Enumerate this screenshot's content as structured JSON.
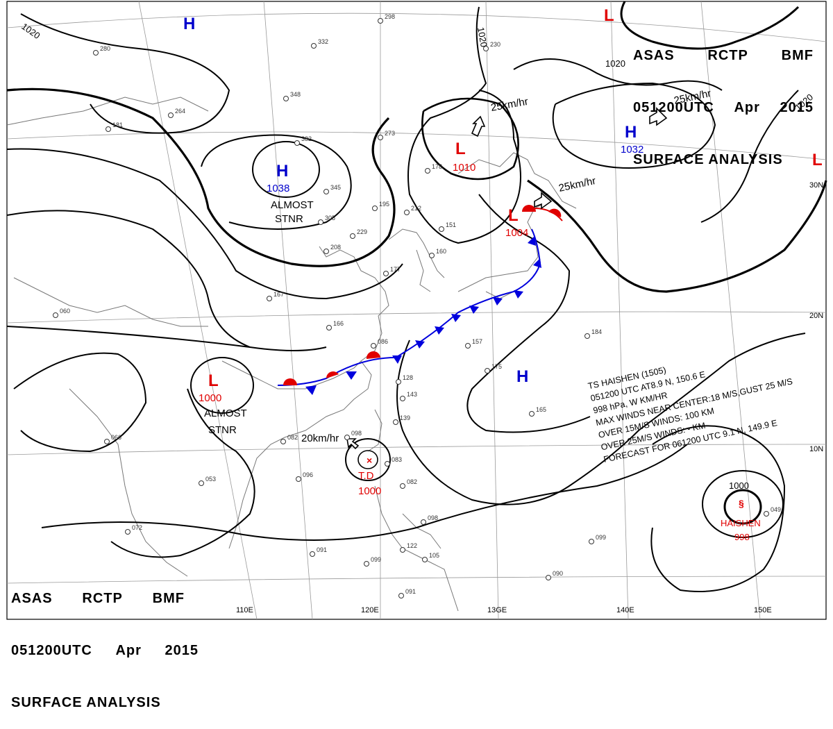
{
  "header": {
    "agency": "ASAS",
    "station": "RCTP",
    "office": "BMF",
    "datetime": "051200UTC",
    "month": "Apr",
    "year": "2015",
    "title": "SURFACE ANALYSIS"
  },
  "longitude_labels": [
    "110E",
    "120E",
    "13GE",
    "140E",
    "150E"
  ],
  "latitude_labels": [
    "20N",
    "10N",
    "30N"
  ],
  "isobars": [
    "1020",
    "1020",
    "1020",
    "1020",
    "1000"
  ],
  "pressure_systems": [
    {
      "type": "H",
      "value": "",
      "color": "#0000cc"
    },
    {
      "type": "H",
      "value": "1038",
      "color": "#0000cc",
      "note": "ALMOST",
      "note2": "STNR"
    },
    {
      "type": "L",
      "value": "1010",
      "color": "#e00000"
    },
    {
      "type": "H",
      "value": "1032",
      "color": "#0000cc"
    },
    {
      "type": "L",
      "value": "1004",
      "color": "#e00000"
    },
    {
      "type": "L",
      "value": "1000",
      "color": "#e00000",
      "note": "ALMOST",
      "note2": "STNR"
    },
    {
      "type": "H",
      "value": "",
      "color": "#0000cc"
    },
    {
      "type": "L",
      "value": "",
      "color": "#e00000"
    },
    {
      "type": "L",
      "value": "",
      "color": "#e00000"
    }
  ],
  "motion_labels": [
    "25km/hr",
    "25km/hr",
    "25km/hr",
    "20km/hr"
  ],
  "tropical_depression": {
    "label": "T.D",
    "value": "1000"
  },
  "typhoon": {
    "name": "HAISHEN",
    "pressure": "998",
    "info": [
      "TS  HAISHEN  (1505)",
      "051200 UTC  AT8.9 N, 150.6 E",
      "998 hPa, W   KM/HR",
      "MAX WINDS NEAR CENTER:18 M/S,GUST 25 M/S",
      "OVER 15M/S WINDS: 100 KM",
      "OVER 25M/S WINDS: - KM",
      "FORECAST FOR 061200 UTC 9.1 N, 149.9 E"
    ]
  },
  "station_values": [
    "298",
    "332",
    "348",
    "382",
    "273",
    "345",
    "305",
    "208",
    "229",
    "195",
    "212",
    "151",
    "160",
    "177",
    "167",
    "166",
    "086",
    "128",
    "143",
    "139",
    "098",
    "083",
    "082",
    "053",
    "096",
    "091",
    "099",
    "122",
    "105",
    "098",
    "157",
    "175",
    "184",
    "165",
    "099",
    "090",
    "091",
    "049",
    "066",
    "060",
    "082",
    "072",
    "178",
    "230",
    "280",
    "181",
    "264"
  ],
  "colors": {
    "isobar": "#000000",
    "coast": "#777777",
    "grid": "#888888",
    "high": "#0000cc",
    "low": "#e00000",
    "cold_front": "#0000dd",
    "warm_front": "#e00000"
  }
}
